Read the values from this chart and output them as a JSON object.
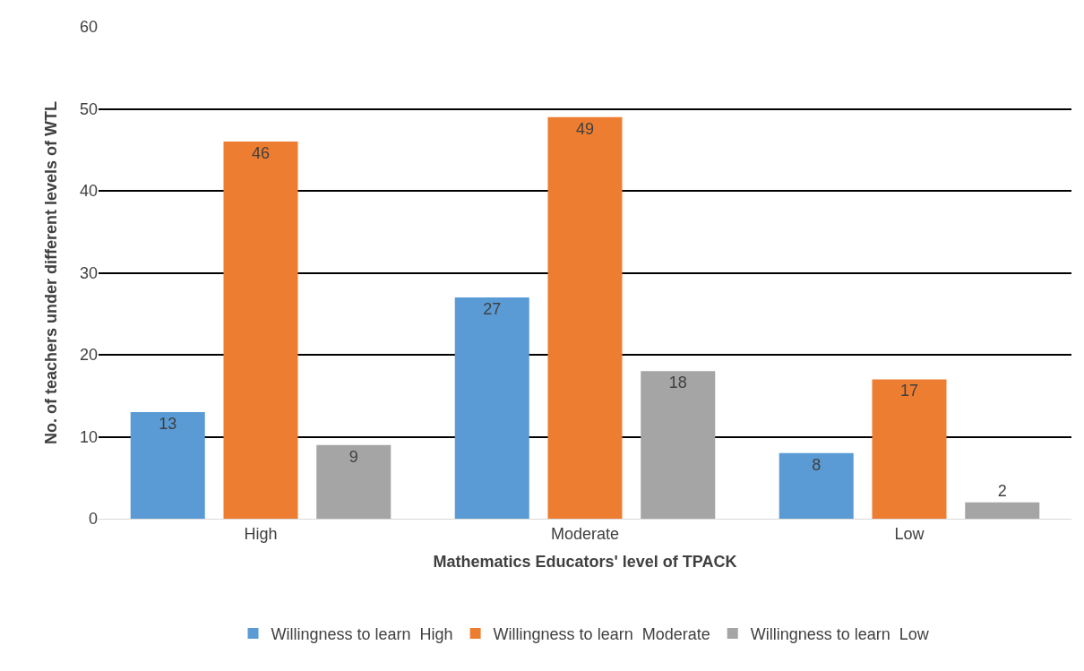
{
  "chart_data": {
    "type": "bar",
    "xlabel": "Mathematics Educators' level of TPACK",
    "ylabel": "No. of teachers under different levels of WTL",
    "categories": [
      "High",
      "Moderate",
      "Low"
    ],
    "series": [
      {
        "name": "Willingness to learn  High",
        "color": "#5b9bd5",
        "values": [
          13,
          27,
          8
        ]
      },
      {
        "name": "Willingness to learn  Moderate",
        "color": "#ed7d31",
        "values": [
          46,
          49,
          17
        ]
      },
      {
        "name": "Willingness to learn  Low",
        "color": "#a5a5a5",
        "values": [
          9,
          18,
          2
        ]
      }
    ],
    "ylim": [
      0,
      60
    ],
    "yticks": [
      0,
      10,
      20,
      30,
      40,
      50,
      60
    ],
    "grid": "y",
    "legend": "bottom",
    "data_labels": true
  }
}
